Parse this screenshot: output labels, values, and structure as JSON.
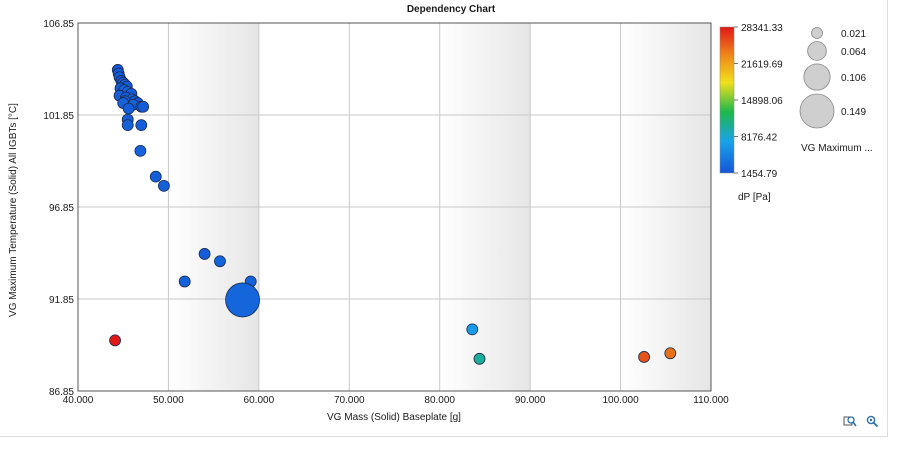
{
  "chart_data": {
    "type": "scatter",
    "title": "Dependency Chart",
    "xlabel": "VG Mass (Solid) Baseplate [g]",
    "ylabel": "VG Maximum Temperature (Solid) All IGBTs [°C]",
    "xlim": [
      40,
      110
    ],
    "ylim": [
      86.85,
      106.85
    ],
    "xticks": [
      "40.000",
      "50.000",
      "60.000",
      "70.000",
      "80.000",
      "90.000",
      "100.000",
      "110.000"
    ],
    "yticks": [
      "86.85",
      "91.85",
      "96.85",
      "101.85",
      "106.85"
    ],
    "grid": true,
    "color_scale": {
      "label": "dP [Pa]",
      "min": 1454.79,
      "max": 28341.33,
      "ticks": [
        "28341.33",
        "21619.69",
        "14898.06",
        "8176.42",
        "1454.79"
      ]
    },
    "size_legend": {
      "label": "VG Maximum ...",
      "values": [
        "0.021",
        "0.064",
        "0.106",
        "0.149"
      ]
    },
    "points": [
      {
        "x": 44.4,
        "y": 104.3,
        "c": 1500,
        "s": 0.021
      },
      {
        "x": 44.5,
        "y": 104.1,
        "c": 1700,
        "s": 0.021
      },
      {
        "x": 44.6,
        "y": 103.9,
        "c": 1900,
        "s": 0.021
      },
      {
        "x": 44.8,
        "y": 103.7,
        "c": 1800,
        "s": 0.021
      },
      {
        "x": 45.0,
        "y": 103.6,
        "c": 2100,
        "s": 0.021
      },
      {
        "x": 45.2,
        "y": 103.5,
        "c": 2300,
        "s": 0.021
      },
      {
        "x": 45.4,
        "y": 103.4,
        "c": 1900,
        "s": 0.021
      },
      {
        "x": 44.7,
        "y": 103.3,
        "c": 2000,
        "s": 0.021
      },
      {
        "x": 45.1,
        "y": 103.2,
        "c": 2200,
        "s": 0.021
      },
      {
        "x": 45.5,
        "y": 103.1,
        "c": 2400,
        "s": 0.021
      },
      {
        "x": 45.9,
        "y": 103.0,
        "c": 1800,
        "s": 0.021
      },
      {
        "x": 44.6,
        "y": 102.9,
        "c": 2100,
        "s": 0.021
      },
      {
        "x": 45.3,
        "y": 102.8,
        "c": 1900,
        "s": 0.021
      },
      {
        "x": 46.0,
        "y": 102.7,
        "c": 2500,
        "s": 0.021
      },
      {
        "x": 45.2,
        "y": 102.6,
        "c": 2000,
        "s": 0.021
      },
      {
        "x": 46.3,
        "y": 102.6,
        "c": 2200,
        "s": 0.021
      },
      {
        "x": 46.6,
        "y": 102.5,
        "c": 1700,
        "s": 0.021
      },
      {
        "x": 45.0,
        "y": 102.5,
        "c": 2300,
        "s": 0.021
      },
      {
        "x": 46.1,
        "y": 102.4,
        "c": 2600,
        "s": 0.021
      },
      {
        "x": 47.0,
        "y": 102.3,
        "c": 1900,
        "s": 0.021
      },
      {
        "x": 45.6,
        "y": 102.2,
        "c": 2000,
        "s": 0.021
      },
      {
        "x": 45.5,
        "y": 101.6,
        "c": 2100,
        "s": 0.021
      },
      {
        "x": 47.2,
        "y": 102.3,
        "c": 1800,
        "s": 0.021
      },
      {
        "x": 45.5,
        "y": 101.3,
        "c": 2200,
        "s": 0.021
      },
      {
        "x": 47.0,
        "y": 101.3,
        "c": 2000,
        "s": 0.021
      },
      {
        "x": 46.9,
        "y": 99.9,
        "c": 2300,
        "s": 0.021
      },
      {
        "x": 48.6,
        "y": 98.5,
        "c": 2100,
        "s": 0.021
      },
      {
        "x": 49.5,
        "y": 98.0,
        "c": 2200,
        "s": 0.021
      },
      {
        "x": 54.0,
        "y": 94.3,
        "c": 2000,
        "s": 0.021
      },
      {
        "x": 55.7,
        "y": 93.9,
        "c": 2400,
        "s": 0.021
      },
      {
        "x": 51.8,
        "y": 92.8,
        "c": 2200,
        "s": 0.021
      },
      {
        "x": 59.1,
        "y": 92.8,
        "c": 2300,
        "s": 0.021
      },
      {
        "x": 58.2,
        "y": 91.8,
        "c": 2600,
        "s": 0.149
      },
      {
        "x": 44.1,
        "y": 89.6,
        "c": 28341.33,
        "s": 0.021
      },
      {
        "x": 83.6,
        "y": 90.2,
        "c": 6200,
        "s": 0.021
      },
      {
        "x": 84.4,
        "y": 88.6,
        "c": 9600,
        "s": 0.021
      },
      {
        "x": 102.6,
        "y": 88.7,
        "c": 24700,
        "s": 0.021
      },
      {
        "x": 105.5,
        "y": 88.9,
        "c": 22800,
        "s": 0.021
      }
    ]
  },
  "colors": {
    "ramp": [
      "#1456d8",
      "#1aa3e8",
      "#1fb84a",
      "#f0b01c",
      "#e8701a",
      "#e01818"
    ],
    "grid": "#c8c8c8",
    "band": "#ececec"
  },
  "icons": {
    "zoom": "zoom-icon",
    "settings": "zoom-settings-icon"
  }
}
